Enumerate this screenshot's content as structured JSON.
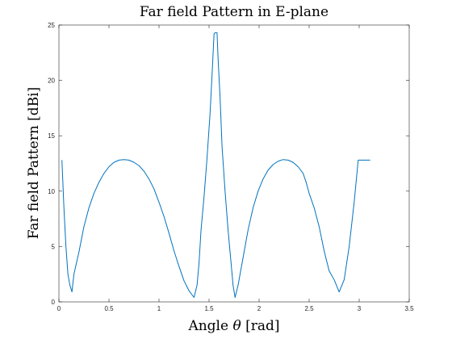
{
  "chart_data": {
    "type": "line",
    "title": "Far field Pattern in E-plane",
    "xlabel_prefix": "Angle ",
    "xlabel_symbol": "θ",
    "xlabel_suffix": " [rad]",
    "ylabel": "Far field Pattern [dBi]",
    "xlim": [
      0,
      3.5
    ],
    "ylim": [
      0,
      25
    ],
    "xticks": [
      "0",
      "0.5",
      "1",
      "1.5",
      "2",
      "2.5",
      "3",
      "3.5"
    ],
    "yticks": [
      "0",
      "5",
      "10",
      "15",
      "20",
      "25"
    ],
    "grid": false,
    "line_color": "#0072bd",
    "series": [
      {
        "x": [
          0.03,
          0.05,
          0.07,
          0.09,
          0.11,
          0.13,
          0.15,
          0.2,
          0.25,
          0.3,
          0.35,
          0.4,
          0.45,
          0.5,
          0.55,
          0.6,
          0.65,
          0.7,
          0.75,
          0.8,
          0.85,
          0.9,
          0.95,
          1.0,
          1.05,
          1.1,
          1.15,
          1.2,
          1.25,
          1.3,
          1.35,
          1.38,
          1.4,
          1.42,
          1.45,
          1.48,
          1.51,
          1.53,
          1.55,
          1.56,
          1.57,
          1.58,
          1.59,
          1.61,
          1.63,
          1.66,
          1.69,
          1.72,
          1.74,
          1.76,
          1.79,
          1.84,
          1.89,
          1.94,
          1.99,
          2.04,
          2.09,
          2.14,
          2.19,
          2.24,
          2.29,
          2.34,
          2.39,
          2.44,
          2.47,
          2.5,
          2.55,
          2.6,
          2.65,
          2.7,
          2.75,
          2.8,
          2.85,
          2.9,
          2.95,
          2.99,
          3.01,
          3.03,
          3.05,
          3.07,
          3.09,
          3.11
        ],
        "y": [
          12.8,
          8.5,
          5.0,
          2.5,
          1.5,
          0.9,
          2.5,
          4.5,
          6.8,
          8.5,
          9.8,
          10.8,
          11.6,
          12.2,
          12.6,
          12.8,
          12.85,
          12.8,
          12.6,
          12.3,
          11.8,
          11.1,
          10.2,
          9.0,
          7.7,
          6.2,
          4.6,
          3.2,
          1.9,
          1.0,
          0.4,
          1.5,
          3.5,
          6.5,
          9.5,
          13.0,
          17.0,
          20.5,
          24.2,
          24.3,
          24.3,
          24.3,
          22.0,
          18.5,
          14.0,
          10.0,
          6.5,
          3.5,
          1.5,
          0.4,
          1.5,
          4.0,
          6.5,
          8.5,
          10.0,
          11.1,
          11.9,
          12.4,
          12.7,
          12.85,
          12.8,
          12.6,
          12.2,
          11.6,
          10.8,
          9.8,
          8.5,
          6.8,
          4.6,
          2.8,
          2.0,
          0.9,
          2.0,
          5.0,
          9.0,
          12.8,
          12.8,
          12.8,
          12.8,
          12.8,
          12.8,
          12.8
        ]
      }
    ]
  }
}
